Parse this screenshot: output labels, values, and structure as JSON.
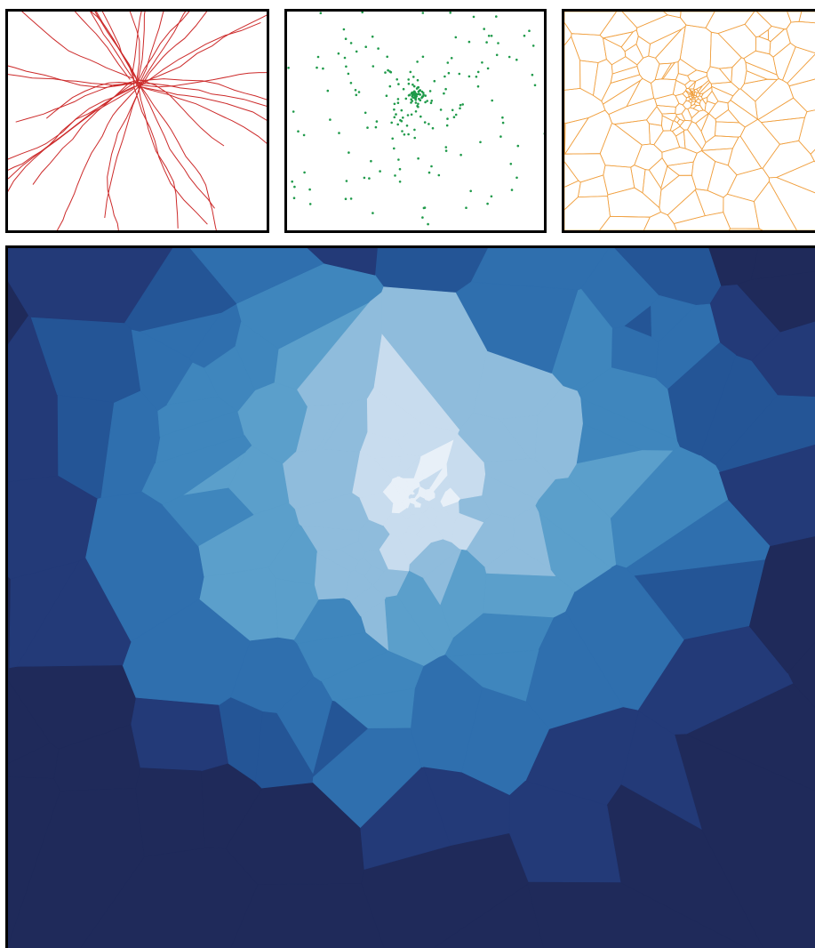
{
  "figure": {
    "panels": [
      {
        "id": "rail-network",
        "kind": "line-network",
        "color": "#cc2a2a"
      },
      {
        "id": "station-points",
        "kind": "point-scatter",
        "color": "#1f9a4a"
      },
      {
        "id": "voronoi-tessellation",
        "kind": "polygon-edges",
        "color": "#f0a040"
      },
      {
        "id": "shaded-voronoi-map",
        "kind": "filled-polygons",
        "palette": [
          "#1f2a5a",
          "#233a78",
          "#245596",
          "#2f6fae",
          "#3f86bd",
          "#5b9fcb",
          "#8fbcdc",
          "#c8dcee",
          "#e8f0f8"
        ]
      }
    ],
    "background": "#ffffff",
    "border_color": "#000000"
  }
}
